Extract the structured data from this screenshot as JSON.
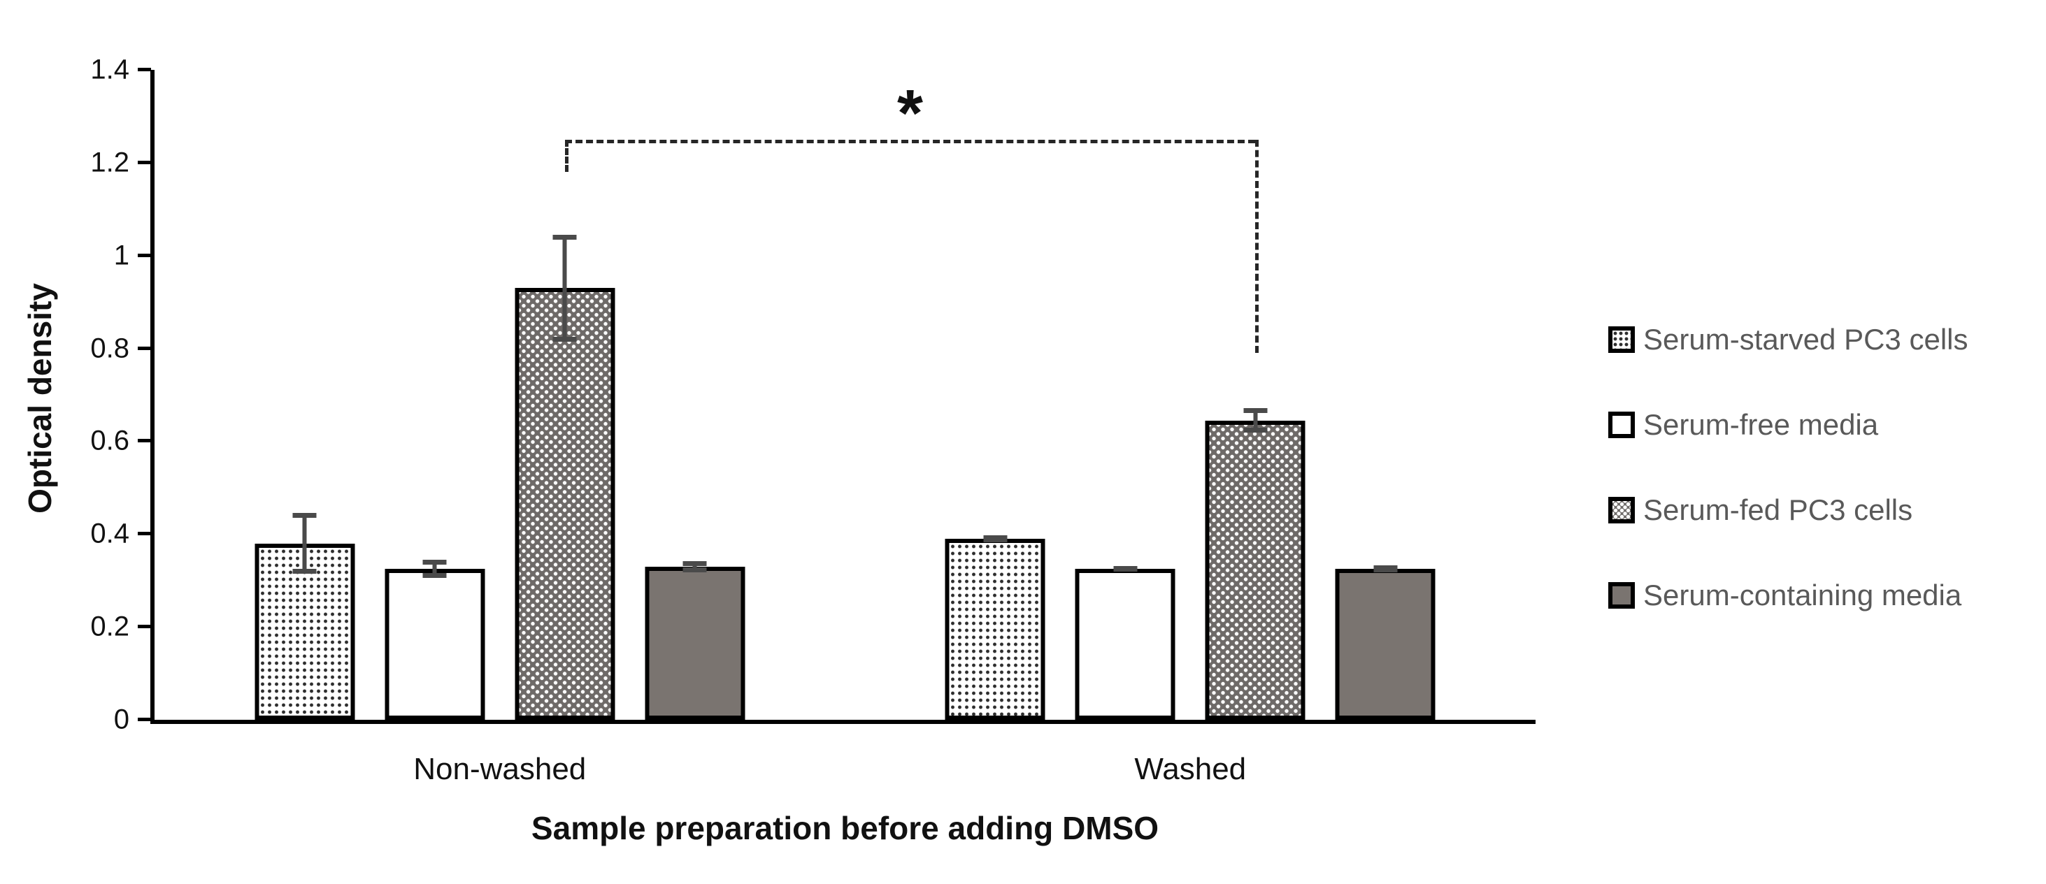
{
  "chart_data": {
    "type": "bar",
    "title": "",
    "xlabel": "Sample preparation before adding DMSO",
    "ylabel": "Optical density",
    "categories": [
      "Non-washed",
      "Washed"
    ],
    "series": [
      {
        "name": "Serum-starved PC3 cells",
        "pattern": "dots-light",
        "values": [
          0.38,
          0.39
        ],
        "errors": [
          0.065,
          0.008
        ]
      },
      {
        "name": "Serum-free media",
        "pattern": "plain-white",
        "values": [
          0.325,
          0.325
        ],
        "errors": [
          0.02,
          0.006
        ]
      },
      {
        "name": "Serum-fed PC3 cells",
        "pattern": "dots-dark",
        "values": [
          0.93,
          0.645
        ],
        "errors": [
          0.115,
          0.027
        ]
      },
      {
        "name": "Serum-containing media",
        "pattern": "solid-gray",
        "values": [
          0.33,
          0.325
        ],
        "errors": [
          0.012,
          0.008
        ]
      }
    ],
    "ylim": [
      0,
      1.4
    ],
    "yticks": [
      0,
      0.2,
      0.4,
      0.6,
      0.8,
      1,
      1.2,
      1.4
    ],
    "ytick_labels": [
      "0",
      "0.2",
      "0.4",
      "0.6",
      "0.8",
      "1",
      "1.2",
      "1.4"
    ],
    "grid": false,
    "legend_position": "right",
    "error_bars": true,
    "significance": {
      "symbol": "*",
      "series": "Serum-fed PC3 cells",
      "between_categories": [
        "Non-washed",
        "Washed"
      ],
      "bracket_level": 1.25,
      "left_drop_to": 1.18,
      "right_drop_to": 0.79,
      "line_style": "dashed"
    }
  },
  "colors": {
    "axis": "#000000",
    "bar_border": "#000000",
    "bar_solid_gray": "#7a7470",
    "bar_dark_dot_background": "#6e6a68",
    "error_bar": "#4a4a4a",
    "legend_text": "#595959",
    "bracket": "#262626"
  }
}
